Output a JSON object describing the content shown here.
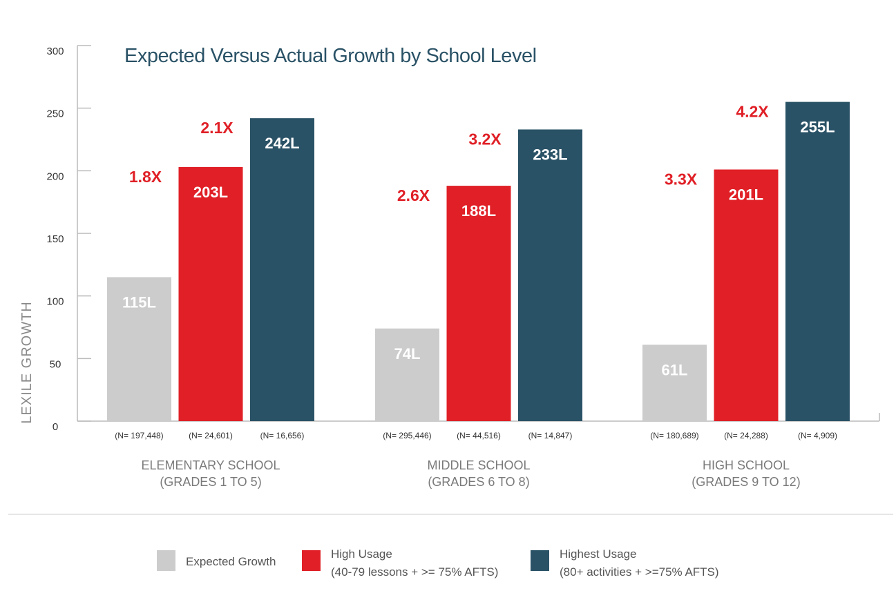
{
  "chart_data": {
    "type": "bar",
    "title": "Expected Versus Actual Growth by School Level",
    "ylabel": "LEXILE GROWTH",
    "xlabel": "",
    "ylim": [
      0,
      300
    ],
    "yticks": [
      "0",
      "50",
      "100",
      "150",
      "200",
      "250",
      "300"
    ],
    "categories": [
      {
        "name": "ELEMENTARY SCHOOL",
        "grades": "(GRADES 1 TO 5)"
      },
      {
        "name": "MIDDLE SCHOOL",
        "grades": "(GRADES 6 TO 8)"
      },
      {
        "name": "HIGH SCHOOL",
        "grades": "(GRADES 9 TO 12)"
      }
    ],
    "series": [
      {
        "name": "Expected Growth",
        "color": "#cccccc",
        "values": [
          115,
          74,
          61
        ],
        "labels": [
          "115L",
          "74L",
          "61L"
        ],
        "n": [
          "(N= 197,448)",
          "(N= 295,446)",
          "(N= 180,689)"
        ],
        "multipliers": [
          "",
          "",
          ""
        ]
      },
      {
        "name": "High Usage",
        "color": "#e01f26",
        "values": [
          203,
          188,
          201
        ],
        "labels": [
          "203L",
          "188L",
          "201L"
        ],
        "n": [
          "(N= 24,601)",
          "(N= 44,516)",
          "(N= 24,288)"
        ],
        "multipliers": [
          "1.8X",
          "2.6X",
          "3.3X"
        ]
      },
      {
        "name": "Highest Usage",
        "color": "#2a5266",
        "values": [
          242,
          233,
          255
        ],
        "labels": [
          "242L",
          "233L",
          "255L"
        ],
        "n": [
          "(N= 16,656)",
          "(N= 14,847)",
          "(N= 4,909)"
        ],
        "multipliers": [
          "2.1X",
          "3.2X",
          "4.2X"
        ]
      }
    ],
    "legend": [
      {
        "line1": "Expected Growth",
        "line2": "",
        "color": "#cccccc"
      },
      {
        "line1": "High Usage",
        "line2": "(40-79 lessons + >= 75% AFTS)",
        "color": "#e01f26"
      },
      {
        "line1": "Highest Usage",
        "line2": "(80+ activities + >=75% AFTS)",
        "color": "#2a5266"
      }
    ]
  }
}
